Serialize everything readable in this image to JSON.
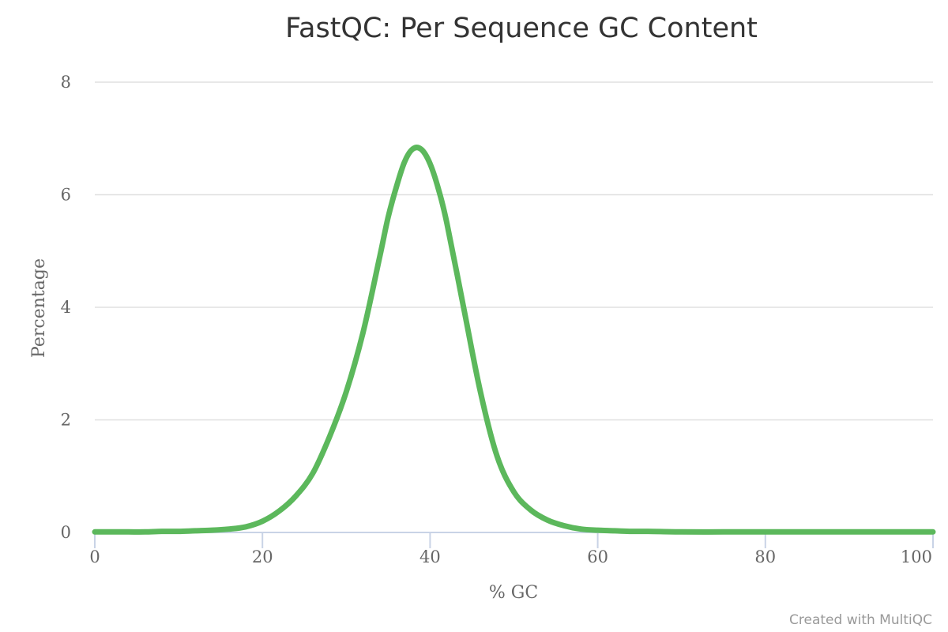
{
  "chart_data": {
    "type": "line",
    "title": "FastQC: Per Sequence GC Content",
    "xlabel": "% GC",
    "ylabel": "Percentage",
    "xlim": [
      0,
      100
    ],
    "ylim": [
      0,
      8
    ],
    "x_ticks": [
      "0",
      "20",
      "40",
      "60",
      "80",
      "100"
    ],
    "y_ticks": [
      "0",
      "2",
      "4",
      "6",
      "8"
    ],
    "grid": true,
    "legend": "none",
    "series": [
      {
        "color": "#5cb85c",
        "x": [
          0,
          2,
          4,
          6,
          8,
          10,
          12,
          14,
          16,
          18,
          20,
          22,
          24,
          26,
          28,
          30,
          32,
          34,
          35,
          36,
          37,
          38,
          39,
          40,
          41,
          42,
          44,
          46,
          48,
          50,
          52,
          54,
          56,
          58,
          60,
          62,
          64,
          66,
          70,
          75,
          80,
          90,
          100
        ],
        "y": [
          0.01,
          0.01,
          0.01,
          0.01,
          0.02,
          0.02,
          0.03,
          0.04,
          0.06,
          0.1,
          0.2,
          0.38,
          0.65,
          1.05,
          1.7,
          2.5,
          3.55,
          4.9,
          5.6,
          6.15,
          6.6,
          6.82,
          6.8,
          6.55,
          6.1,
          5.5,
          4.0,
          2.5,
          1.35,
          0.72,
          0.4,
          0.22,
          0.12,
          0.06,
          0.04,
          0.03,
          0.02,
          0.02,
          0.01,
          0.01,
          0.01,
          0.01,
          0.01
        ]
      }
    ]
  },
  "credit": "Created with MultiQC"
}
